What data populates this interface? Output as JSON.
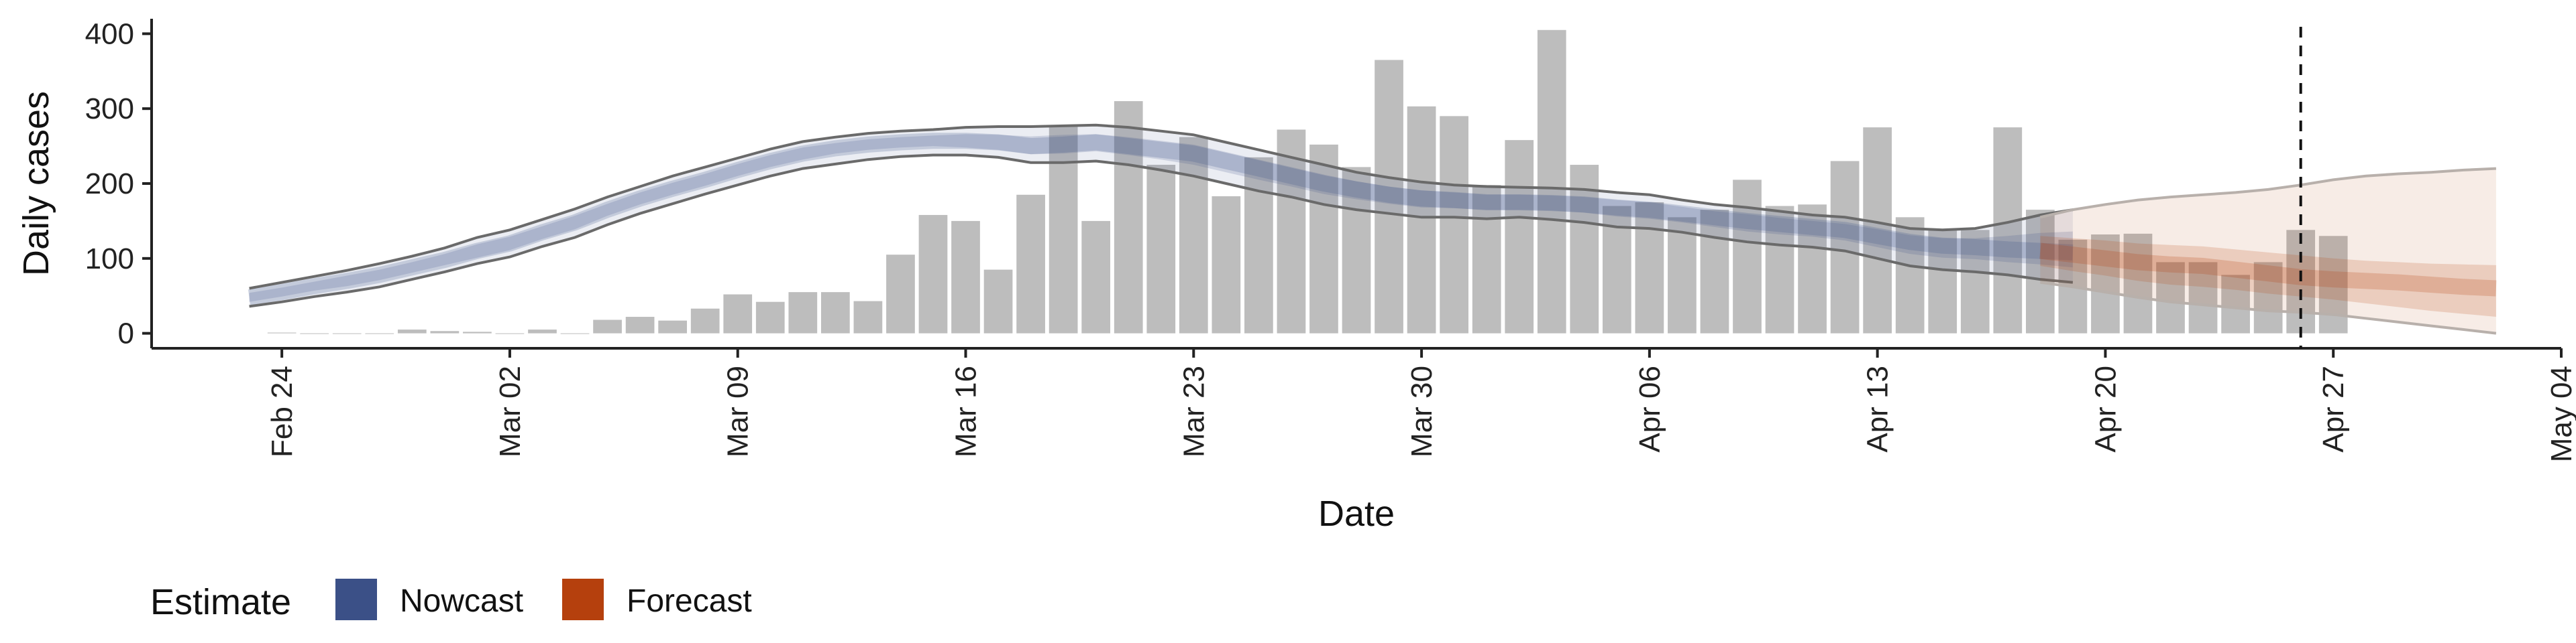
{
  "chart_data": {
    "type": "bar",
    "xlabel": "Date",
    "ylabel": "Daily cases",
    "ylim": [
      -20,
      420
    ],
    "xlim": [
      "2020-02-20",
      "2020-05-04"
    ],
    "x_ticks": [
      "2020-02-24",
      "2020-03-02",
      "2020-03-09",
      "2020-03-16",
      "2020-03-23",
      "2020-03-30",
      "2020-04-06",
      "2020-04-13",
      "2020-04-20",
      "2020-04-27",
      "2020-05-04"
    ],
    "x_tick_labels": [
      "Feb 24",
      "Mar 02",
      "Mar 09",
      "Mar 16",
      "Mar 23",
      "Mar 30",
      "Apr 06",
      "Apr 13",
      "Apr 20",
      "Apr 27",
      "May 04"
    ],
    "y_ticks": [
      0,
      100,
      200,
      300,
      400
    ],
    "y_tick_labels": [
      "0",
      "100",
      "200",
      "300",
      "400"
    ],
    "bars": {
      "start_date": "2020-02-24",
      "values": [
        1,
        0,
        0,
        0,
        5,
        3,
        2,
        0,
        5,
        0,
        18,
        22,
        17,
        33,
        52,
        42,
        55,
        55,
        43,
        105,
        158,
        150,
        85,
        185,
        278,
        150,
        310,
        225,
        262,
        183,
        235,
        272,
        252,
        222,
        365,
        303,
        290,
        198,
        258,
        405,
        225,
        170,
        175,
        155,
        165,
        205,
        170,
        172,
        230,
        275,
        155,
        138,
        138,
        275,
        165,
        125,
        132,
        133,
        95,
        95,
        78,
        95,
        138,
        130
      ]
    },
    "series": [
      {
        "name": "Nowcast",
        "start_date": "2020-02-23",
        "median": [
          48,
          55,
          63,
          70,
          78,
          88,
          98,
          110,
          120,
          135,
          148,
          165,
          180,
          193,
          205,
          218,
          230,
          240,
          247,
          252,
          255,
          257,
          257,
          255,
          250,
          252,
          255,
          250,
          245,
          240,
          230,
          220,
          210,
          200,
          192,
          185,
          180,
          178,
          175,
          175,
          174,
          172,
          168,
          165,
          160,
          155,
          150,
          146,
          142,
          138,
          130,
          122,
          117,
          115,
          112,
          110,
          108
        ],
        "outer_upper": [
          60,
          68,
          76,
          84,
          93,
          103,
          114,
          128,
          138,
          152,
          166,
          182,
          196,
          210,
          222,
          234,
          246,
          256,
          262,
          267,
          270,
          272,
          275,
          276,
          276,
          277,
          278,
          275,
          270,
          265,
          255,
          245,
          235,
          225,
          215,
          208,
          202,
          198,
          196,
          195,
          194,
          192,
          188,
          185,
          178,
          172,
          168,
          163,
          158,
          155,
          148,
          140,
          138,
          140,
          148,
          158,
          165
        ],
        "outer_lower": [
          36,
          42,
          49,
          55,
          62,
          72,
          82,
          93,
          102,
          116,
          128,
          145,
          160,
          173,
          186,
          198,
          210,
          220,
          226,
          232,
          236,
          238,
          238,
          235,
          228,
          228,
          230,
          225,
          218,
          210,
          200,
          190,
          182,
          172,
          165,
          160,
          155,
          155,
          153,
          155,
          152,
          148,
          142,
          140,
          135,
          128,
          122,
          118,
          115,
          110,
          100,
          90,
          85,
          82,
          78,
          72,
          68
        ],
        "inner_upper": [
          54,
          61,
          69,
          77,
          85,
          95,
          106,
          119,
          129,
          143,
          157,
          173,
          188,
          201,
          213,
          226,
          238,
          248,
          254,
          259,
          262,
          264,
          266,
          265,
          263,
          265,
          266,
          262,
          257,
          252,
          242,
          232,
          222,
          212,
          203,
          196,
          191,
          188,
          185,
          185,
          184,
          182,
          178,
          175,
          169,
          163,
          159,
          154,
          150,
          146,
          139,
          131,
          127,
          127,
          130,
          134,
          136
        ],
        "inner_lower": [
          42,
          49,
          57,
          63,
          71,
          81,
          91,
          101,
          111,
          126,
          139,
          157,
          172,
          185,
          197,
          210,
          222,
          232,
          240,
          245,
          248,
          250,
          248,
          245,
          239,
          240,
          243,
          238,
          232,
          225,
          215,
          205,
          196,
          186,
          179,
          173,
          168,
          167,
          165,
          165,
          164,
          161,
          156,
          153,
          148,
          142,
          136,
          132,
          129,
          124,
          115,
          106,
          101,
          99,
          95,
          92,
          88
        ],
        "color": "#3b5087"
      },
      {
        "name": "Forecast",
        "start_date": "2020-04-18",
        "median": [
          110,
          105,
          100,
          95,
          92,
          90,
          85,
          80,
          75,
          72,
          70,
          68,
          65,
          62,
          60
        ],
        "outer_upper": [
          155,
          165,
          172,
          178,
          182,
          185,
          188,
          192,
          198,
          205,
          210,
          213,
          215,
          218,
          220
        ],
        "outer_lower": [
          68,
          62,
          55,
          48,
          42,
          38,
          34,
          30,
          28,
          25,
          20,
          15,
          10,
          5,
          0
        ],
        "inner_upper": [
          130,
          127,
          124,
          120,
          118,
          116,
          112,
          108,
          104,
          100,
          97,
          95,
          93,
          92,
          91
        ],
        "inner_lower": [
          90,
          83,
          77,
          70,
          65,
          62,
          58,
          53,
          49,
          45,
          40,
          35,
          30,
          26,
          22
        ],
        "color": "#b5400d"
      }
    ],
    "vline_date": "2020-04-26",
    "legend": {
      "title": "Estimate",
      "placement": "bottom-left",
      "items": [
        {
          "label": "Nowcast",
          "color": "#3b5087"
        },
        {
          "label": "Forecast",
          "color": "#b5400d"
        }
      ]
    },
    "grid": false
  }
}
